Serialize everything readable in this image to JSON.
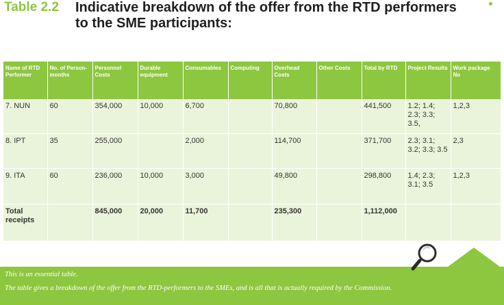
{
  "title": {
    "number": "Table 2.2",
    "text_line1": "Indicative breakdown of the offer from the RTD performers",
    "text_line2": "to the SME participants:"
  },
  "table": {
    "headers": [
      "Name of RTD Performer",
      "No. of Person-months",
      "Personnel Costs",
      "Durable equipment",
      "Consumables",
      "Computing",
      "Overhead Costs",
      "Other Costs",
      "Total by RTD",
      "Project Results",
      "Work package No"
    ],
    "rows": [
      [
        "7.  NUN",
        "60",
        "354,000",
        "10,000",
        "6,700",
        "",
        "70,800",
        "",
        "441,500",
        "1.2; 1.4; 2.3; 3.3; 3.5,",
        "1,2,3"
      ],
      [
        "8.  IPT",
        "35",
        "255,000",
        "",
        "2,000",
        "",
        "114,700",
        "",
        "371,700",
        "2.3; 3.1; 3.2; 3.3; 3.5",
        "2,3"
      ],
      [
        "9.  ITA",
        "60",
        "236,000",
        "10,000",
        "3,000",
        "",
        "49,800",
        "",
        "298,800",
        "1.4; 2.3; 3.1; 3.5",
        "1,2,3"
      ]
    ],
    "total": [
      "Total receipts",
      "",
      "845,000",
      "20,000",
      "11,700",
      "",
      "235,300",
      "",
      "1,112,000",
      "",
      ""
    ]
  },
  "footer": {
    "line1": "This is an essential table.",
    "line2": "The table gives a breakdown of the offer from the RTD-performers to the SMEs, and is all that is actually required by the Commission."
  },
  "colors": {
    "accent": "#8dc63f",
    "cell_bg": "#eaf4da",
    "title_text": "#1f1f1f"
  },
  "icons": [
    "magnifier-icon"
  ]
}
